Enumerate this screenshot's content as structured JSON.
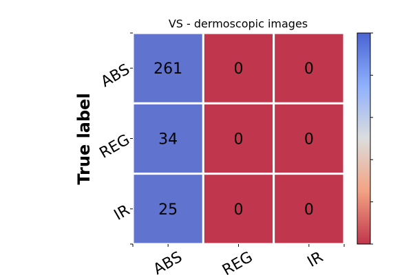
{
  "chart_data": {
    "type": "heatmap",
    "title": "VS - dermoscopic images",
    "ylabel": "True label",
    "xlabel": "",
    "x_categories": [
      "ABS",
      "REG",
      "IR"
    ],
    "y_categories": [
      "ABS",
      "REG",
      "IR"
    ],
    "values": [
      [
        261,
        0,
        0
      ],
      [
        34,
        0,
        0
      ],
      [
        25,
        0,
        0
      ]
    ],
    "colormap": "coolwarm_r",
    "colors": {
      "high": "#5f73cf",
      "low": "#c0364c",
      "grid": "#ffffff"
    },
    "colorbar": {
      "gradient": [
        "#4a63d3",
        "#8fb0fd",
        "#dcdddd",
        "#f3a283",
        "#c0364c"
      ],
      "tick_count": 6
    }
  }
}
